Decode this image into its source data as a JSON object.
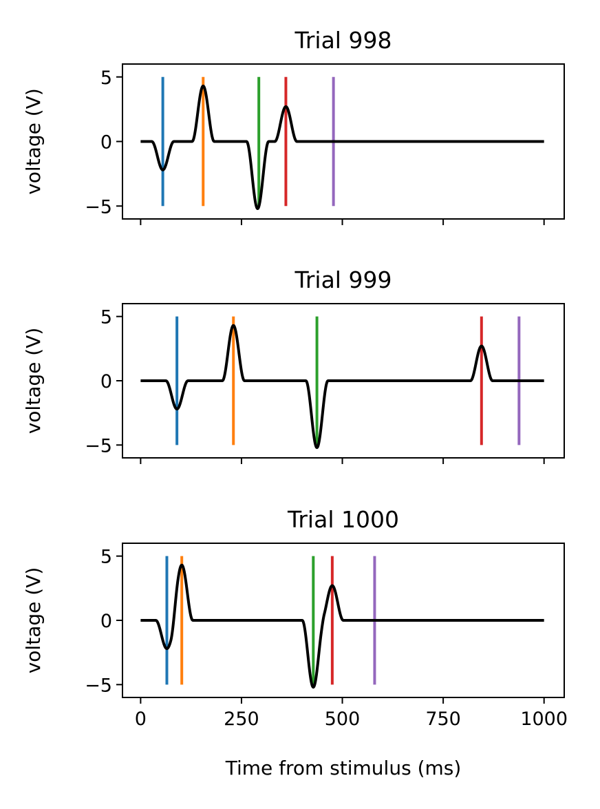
{
  "chart_data": [
    {
      "type": "line",
      "title": "Trial 998",
      "ylabel": "voltage (V)",
      "xlabel": "",
      "xlim": [
        -45,
        1050
      ],
      "ylim": [
        -6,
        6
      ],
      "x_ticks": [
        0,
        250,
        500,
        750,
        1000
      ],
      "x_tick_labels": [],
      "y_ticks": [
        -5,
        0,
        5
      ],
      "y_tick_labels": [
        "−5",
        "0",
        "5"
      ],
      "waveform_color": "#000000",
      "components": [
        {
          "center_ms": 55,
          "amplitude": -2.2,
          "duration_ms": 55
        },
        {
          "center_ms": 155,
          "amplitude": 4.3,
          "duration_ms": 55
        },
        {
          "center_ms": 290,
          "amplitude": -5.2,
          "duration_ms": 55
        },
        {
          "center_ms": 360,
          "amplitude": 2.7,
          "duration_ms": 55
        }
      ],
      "event_markers": [
        {
          "time_ms": 55,
          "color": "#1f77b4"
        },
        {
          "time_ms": 155,
          "color": "#ff7f0e"
        },
        {
          "time_ms": 293,
          "color": "#2ca02c"
        },
        {
          "time_ms": 360,
          "color": "#d62728"
        },
        {
          "time_ms": 478,
          "color": "#9467bd"
        }
      ],
      "marker_range": [
        -5,
        5
      ]
    },
    {
      "type": "line",
      "title": "Trial 999",
      "ylabel": "voltage (V)",
      "xlabel": "",
      "xlim": [
        -45,
        1050
      ],
      "ylim": [
        -6,
        6
      ],
      "x_ticks": [
        0,
        250,
        500,
        750,
        1000
      ],
      "x_tick_labels": [],
      "y_ticks": [
        -5,
        0,
        5
      ],
      "y_tick_labels": [
        "−5",
        "0",
        "5"
      ],
      "waveform_color": "#000000",
      "components": [
        {
          "center_ms": 90,
          "amplitude": -2.2,
          "duration_ms": 55
        },
        {
          "center_ms": 230,
          "amplitude": 4.3,
          "duration_ms": 55
        },
        {
          "center_ms": 437,
          "amplitude": -5.2,
          "duration_ms": 55
        },
        {
          "center_ms": 845,
          "amplitude": 2.7,
          "duration_ms": 55
        }
      ],
      "event_markers": [
        {
          "time_ms": 90,
          "color": "#1f77b4"
        },
        {
          "time_ms": 230,
          "color": "#ff7f0e"
        },
        {
          "time_ms": 437,
          "color": "#2ca02c"
        },
        {
          "time_ms": 845,
          "color": "#d62728"
        },
        {
          "time_ms": 938,
          "color": "#9467bd"
        }
      ],
      "marker_range": [
        -5,
        5
      ]
    },
    {
      "type": "line",
      "title": "Trial 1000",
      "ylabel": "voltage (V)",
      "xlabel": "Time from stimulus (ms)",
      "xlim": [
        -45,
        1050
      ],
      "ylim": [
        -6,
        6
      ],
      "x_ticks": [
        0,
        250,
        500,
        750,
        1000
      ],
      "x_tick_labels": [
        "0",
        "250",
        "500",
        "750",
        "1000"
      ],
      "y_ticks": [
        -5,
        0,
        5
      ],
      "y_tick_labels": [
        "−5",
        "0",
        "5"
      ],
      "waveform_color": "#000000",
      "components": [
        {
          "center_ms": 65,
          "amplitude": -2.2,
          "duration_ms": 55
        },
        {
          "center_ms": 102,
          "amplitude": 4.3,
          "duration_ms": 55
        },
        {
          "center_ms": 428,
          "amplitude": -5.2,
          "duration_ms": 55
        },
        {
          "center_ms": 475,
          "amplitude": 2.7,
          "duration_ms": 55
        }
      ],
      "event_markers": [
        {
          "time_ms": 65,
          "color": "#1f77b4"
        },
        {
          "time_ms": 102,
          "color": "#ff7f0e"
        },
        {
          "time_ms": 428,
          "color": "#2ca02c"
        },
        {
          "time_ms": 475,
          "color": "#d62728"
        },
        {
          "time_ms": 580,
          "color": "#9467bd"
        }
      ],
      "marker_range": [
        -5,
        5
      ]
    }
  ]
}
